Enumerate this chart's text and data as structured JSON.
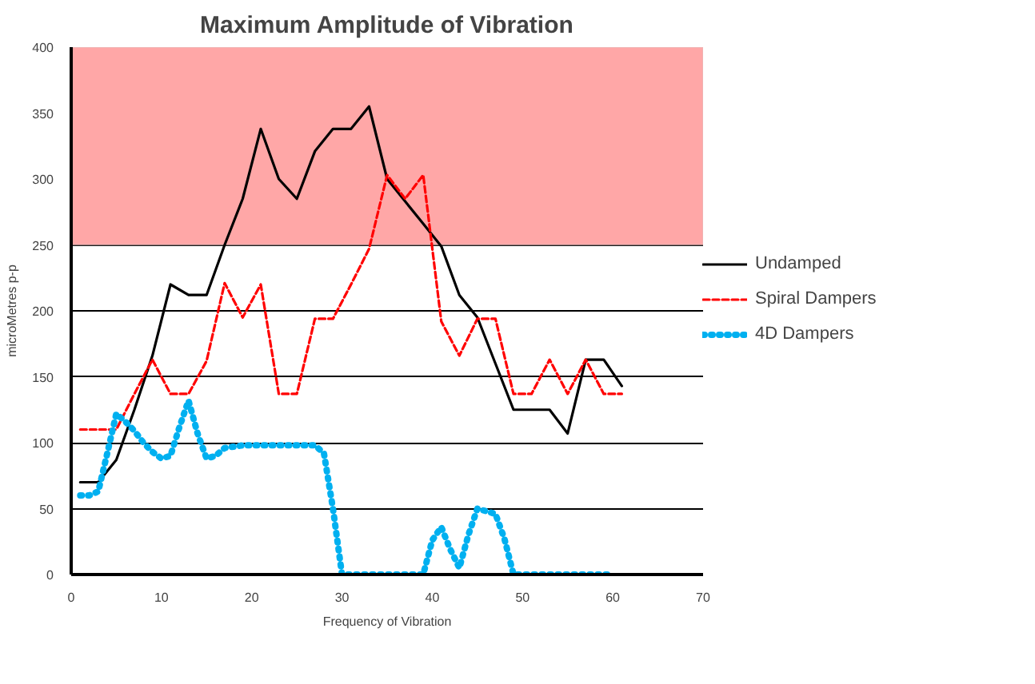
{
  "chart_data": {
    "type": "line",
    "title": "Maximum Amplitude of Vibration",
    "xlabel": "Frequency of Vibration",
    "ylabel": "microMetres p-p",
    "xlim": [
      0,
      70
    ],
    "xticks": [
      0,
      10,
      20,
      30,
      40,
      50,
      60,
      70
    ],
    "ylim": [
      0,
      400
    ],
    "yticks": [
      0,
      50,
      100,
      150,
      200,
      250,
      300,
      350,
      400
    ],
    "grid": "y",
    "legend": "right",
    "marker": "none",
    "bands": [
      {
        "axis": "y",
        "from": 250,
        "to": 400,
        "color": "#ffa7a7"
      }
    ],
    "series": [
      {
        "name": "Undamped",
        "color": "#000000",
        "line_style": "solid",
        "x": [
          1,
          3,
          5,
          7,
          9,
          11,
          13,
          15,
          17,
          19,
          21,
          23,
          25,
          27,
          29,
          31,
          33,
          35,
          37,
          39,
          41,
          43,
          45,
          47,
          49,
          51,
          53,
          55,
          57,
          59,
          61
        ],
        "values": [
          70,
          70,
          87,
          125,
          166,
          220,
          212,
          212,
          250,
          285,
          338,
          300,
          285,
          321,
          338,
          338,
          355,
          300,
          283,
          266,
          249,
          212,
          195,
          160,
          125,
          125,
          125,
          107,
          163,
          163,
          143
        ]
      },
      {
        "name": "Spiral Dampers",
        "color": "#ff0000",
        "line_style": "dashed",
        "x": [
          1,
          3,
          5,
          7,
          9,
          11,
          13,
          15,
          17,
          19,
          21,
          23,
          25,
          27,
          29,
          31,
          33,
          35,
          37,
          39,
          41,
          43,
          45,
          47,
          49,
          51,
          53,
          55,
          57,
          59,
          61
        ],
        "values": [
          110,
          110,
          110,
          137,
          163,
          137,
          137,
          162,
          221,
          195,
          220,
          137,
          137,
          194,
          194,
          220,
          247,
          303,
          285,
          303,
          192,
          166,
          194,
          194,
          137,
          137,
          163,
          137,
          163,
          137,
          137
        ]
      },
      {
        "name": "4D Dampers",
        "color": "#00b0f0",
        "line_style": "dotted",
        "x": [
          1,
          2,
          3,
          4,
          5,
          6,
          7,
          8,
          9,
          10,
          11,
          12,
          13,
          14,
          15,
          16,
          17,
          19,
          21,
          23,
          25,
          27,
          28,
          29,
          30,
          32,
          34,
          36,
          38,
          39,
          40,
          41,
          42,
          43,
          44,
          45,
          46,
          47,
          48,
          49,
          51,
          53,
          55,
          57,
          59,
          60
        ],
        "values": [
          60,
          60,
          63,
          92,
          122,
          116,
          109,
          100,
          93,
          88,
          90,
          112,
          132,
          107,
          88,
          90,
          96,
          98,
          98,
          98,
          98,
          98,
          92,
          50,
          0,
          0,
          0,
          0,
          0,
          0,
          26,
          36,
          19,
          5,
          30,
          50,
          48,
          46,
          27,
          0,
          0,
          0,
          0,
          0,
          0,
          0
        ]
      }
    ]
  }
}
